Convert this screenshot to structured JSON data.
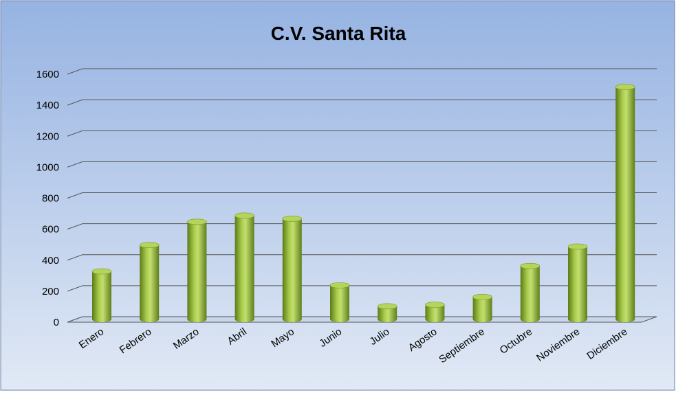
{
  "chart_data": {
    "type": "bar",
    "title": "C.V. Santa Rita",
    "categories": [
      "Enero",
      "Febrero",
      "Marzo",
      "Abril",
      "Mayo",
      "Junio",
      "Julio",
      "Agosto",
      "Septiembre",
      "Octubre",
      "Noviembre",
      "Diciembre"
    ],
    "values": [
      310,
      480,
      630,
      670,
      650,
      220,
      85,
      95,
      145,
      345,
      470,
      1500
    ],
    "color": "#8db030",
    "ylim": [
      0,
      1600
    ],
    "yticks": [
      0,
      200,
      400,
      600,
      800,
      1000,
      1200,
      1400,
      1600
    ],
    "grid": true
  }
}
